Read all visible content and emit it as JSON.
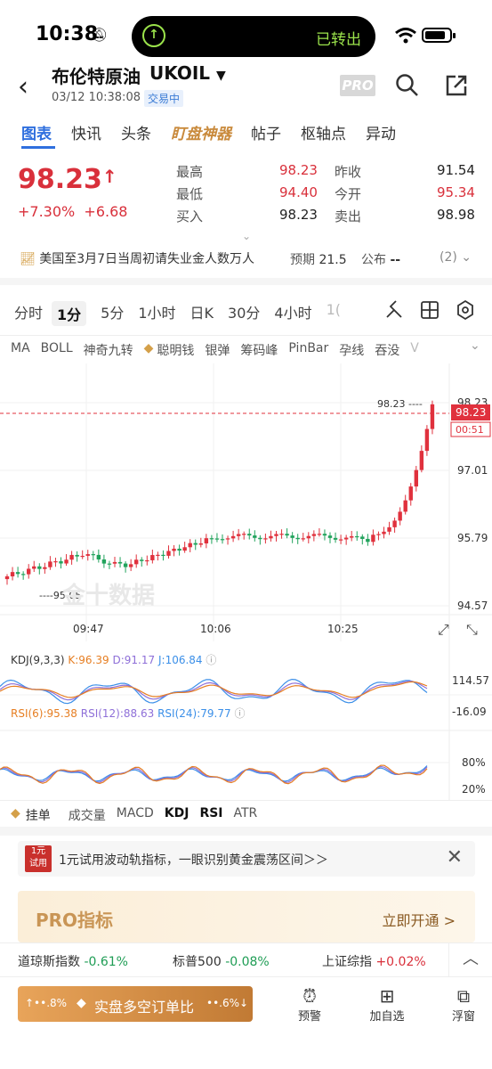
{
  "status": {
    "time": "10:38",
    "island_text": "已转出"
  },
  "header": {
    "title": "布伦特原油",
    "symbol": "UKOIL",
    "datetime": "03/12 10:38:08",
    "badge": "交易中",
    "pro": "PRO"
  },
  "tabs": [
    "图表",
    "快讯",
    "头条",
    "盯盘神器",
    "帖子",
    "枢轴点",
    "异动"
  ],
  "quote": {
    "price": "98.23",
    "arrow": "↑",
    "pct": "+7.30%",
    "chg": "+6.68",
    "high_label": "最高",
    "high": "98.23",
    "prev_label": "昨收",
    "prev": "91.54",
    "low_label": "最低",
    "low": "94.40",
    "open_label": "今开",
    "open": "95.34",
    "bid_label": "买入",
    "bid": "98.23",
    "ask_label": "卖出",
    "ask": "98.98"
  },
  "event": {
    "text": "美国至3月7日当周初请失业金人数万人",
    "forecast_label": "预期",
    "forecast": "21.5",
    "publish_label": "公布",
    "publish": "--",
    "count": "(2)"
  },
  "periods": [
    "分时",
    "1分",
    "5分",
    "1小时",
    "日K",
    "30分",
    "4小时",
    "1("
  ],
  "indicators": [
    "MA",
    "BOLL",
    "神奇九转",
    "聪明钱",
    "银弹",
    "筹码峰",
    "PinBar",
    "孕线",
    "吞没",
    "V"
  ],
  "chart_data": [
    {
      "type": "candlestick",
      "title": "",
      "ylim": [
        94.57,
        98.23
      ],
      "yticks": [
        "98.23",
        "97.01",
        "95.79",
        "94.57"
      ],
      "xticks": [
        "09:47",
        "10:06",
        "10:25"
      ],
      "last_price": "98.23",
      "countdown": "00:51",
      "high_marker": "98.23",
      "low_marker": "95.05",
      "watermark": "金十数据"
    },
    {
      "type": "line",
      "title": "KDJ(9,3,3)",
      "series": [
        {
          "name": "K",
          "value": "96.39"
        },
        {
          "name": "D",
          "value": "91.17"
        },
        {
          "name": "J",
          "value": "106.84"
        }
      ],
      "yticks": [
        "114.57",
        "-16.09"
      ]
    },
    {
      "type": "line",
      "title": "RSI",
      "series": [
        {
          "name": "RSI(6)",
          "value": "95.38"
        },
        {
          "name": "RSI(12)",
          "value": "88.63"
        },
        {
          "name": "RSI(24)",
          "value": "79.77"
        }
      ],
      "yticks": [
        "80%",
        "20%"
      ]
    }
  ],
  "subtabs": [
    "挂单",
    "成交量",
    "MACD",
    "KDJ",
    "RSI",
    "ATR"
  ],
  "promo": {
    "badge_top": "1元",
    "badge_bottom": "试用",
    "text": "1元试用波动轨指标，一眼识别黄金震荡区间＞＞"
  },
  "pro_banner": {
    "title": "PRO指标",
    "action": "立即开通 >"
  },
  "indices": [
    {
      "name": "道琼斯指数",
      "value": "-0.61%"
    },
    {
      "name": "标普500",
      "value": "-0.08%"
    },
    {
      "name": "上证综指",
      "value": "+0.02%"
    }
  ],
  "bottom": {
    "cta_left": "↑••.8%",
    "cta": "实盘多空订单比",
    "cta_right": "••.6%↓",
    "alert": "预警",
    "add": "加自选",
    "float": "浮窗"
  }
}
